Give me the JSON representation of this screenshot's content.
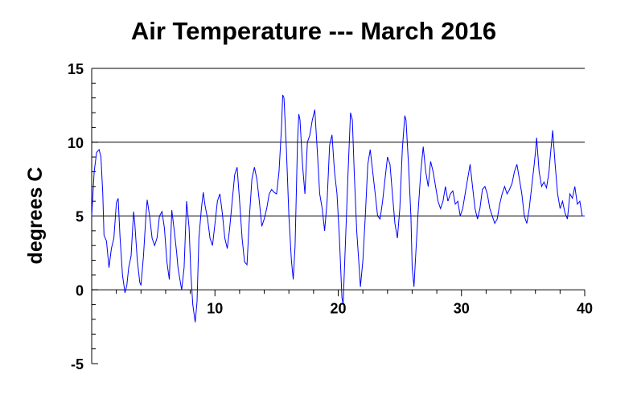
{
  "chart_data": {
    "type": "line",
    "title": "Air Temperature --- March 2016",
    "xlabel": "",
    "ylabel": "degrees C",
    "xlim": [
      0,
      40
    ],
    "ylim": [
      -5,
      15
    ],
    "x_ticks": [
      10,
      20,
      30,
      40
    ],
    "y_ticks": [
      -5,
      0,
      5,
      10,
      15
    ],
    "grid": "horizontal lines at 5, 10, 15",
    "line_color": "#0000ff",
    "series": [
      {
        "points": [
          [
            0.0,
            5.0
          ],
          [
            0.2,
            8.0
          ],
          [
            0.4,
            9.3
          ],
          [
            0.6,
            9.5
          ],
          [
            0.75,
            9.0
          ],
          [
            0.9,
            6.5
          ],
          [
            1.0,
            3.7
          ],
          [
            1.2,
            3.3
          ],
          [
            1.4,
            1.5
          ],
          [
            1.6,
            2.8
          ],
          [
            1.8,
            3.5
          ],
          [
            2.0,
            5.9
          ],
          [
            2.15,
            6.2
          ],
          [
            2.3,
            3.6
          ],
          [
            2.5,
            1.0
          ],
          [
            2.7,
            -0.2
          ],
          [
            2.85,
            0.3
          ],
          [
            3.0,
            1.5
          ],
          [
            3.2,
            2.3
          ],
          [
            3.4,
            5.3
          ],
          [
            3.5,
            4.5
          ],
          [
            3.7,
            2.0
          ],
          [
            3.9,
            0.5
          ],
          [
            4.0,
            0.3
          ],
          [
            4.2,
            2.3
          ],
          [
            4.4,
            5.0
          ],
          [
            4.5,
            6.1
          ],
          [
            4.7,
            5.0
          ],
          [
            4.9,
            3.5
          ],
          [
            5.1,
            3.0
          ],
          [
            5.3,
            3.5
          ],
          [
            5.5,
            5.0
          ],
          [
            5.7,
            5.3
          ],
          [
            5.9,
            4.2
          ],
          [
            6.1,
            1.9
          ],
          [
            6.3,
            0.7
          ],
          [
            6.5,
            5.4
          ],
          [
            6.7,
            4.0
          ],
          [
            6.9,
            2.5
          ],
          [
            7.0,
            1.5
          ],
          [
            7.2,
            0.5
          ],
          [
            7.3,
            0.0
          ],
          [
            7.5,
            1.5
          ],
          [
            7.7,
            6.0
          ],
          [
            7.9,
            4.2
          ],
          [
            8.05,
            1.0
          ],
          [
            8.2,
            -1.0
          ],
          [
            8.4,
            -2.2
          ],
          [
            8.55,
            -0.8
          ],
          [
            8.7,
            3.5
          ],
          [
            8.9,
            5.5
          ],
          [
            9.05,
            6.6
          ],
          [
            9.2,
            5.7
          ],
          [
            9.4,
            4.8
          ],
          [
            9.6,
            3.5
          ],
          [
            9.8,
            3.0
          ],
          [
            10.0,
            4.5
          ],
          [
            10.2,
            6.0
          ],
          [
            10.4,
            6.5
          ],
          [
            10.6,
            5.2
          ],
          [
            10.8,
            3.5
          ],
          [
            11.0,
            2.8
          ],
          [
            11.2,
            4.2
          ],
          [
            11.4,
            6.0
          ],
          [
            11.6,
            7.8
          ],
          [
            11.8,
            8.3
          ],
          [
            12.0,
            6.0
          ],
          [
            12.2,
            3.5
          ],
          [
            12.4,
            1.9
          ],
          [
            12.6,
            1.7
          ],
          [
            12.8,
            5.0
          ],
          [
            13.0,
            7.5
          ],
          [
            13.2,
            8.3
          ],
          [
            13.4,
            7.5
          ],
          [
            13.6,
            6.0
          ],
          [
            13.8,
            4.3
          ],
          [
            14.0,
            4.8
          ],
          [
            14.2,
            5.5
          ],
          [
            14.4,
            6.5
          ],
          [
            14.6,
            6.8
          ],
          [
            14.8,
            6.6
          ],
          [
            15.0,
            6.5
          ],
          [
            15.2,
            8.0
          ],
          [
            15.4,
            11.0
          ],
          [
            15.5,
            13.2
          ],
          [
            15.6,
            13.0
          ],
          [
            15.8,
            9.5
          ],
          [
            16.0,
            5.0
          ],
          [
            16.2,
            2.0
          ],
          [
            16.35,
            0.7
          ],
          [
            16.5,
            3.0
          ],
          [
            16.7,
            10.0
          ],
          [
            16.8,
            11.9
          ],
          [
            16.9,
            11.5
          ],
          [
            17.1,
            8.5
          ],
          [
            17.3,
            6.5
          ],
          [
            17.5,
            10.0
          ],
          [
            17.7,
            10.5
          ],
          [
            17.9,
            11.5
          ],
          [
            18.1,
            12.2
          ],
          [
            18.3,
            9.5
          ],
          [
            18.5,
            6.5
          ],
          [
            18.7,
            5.5
          ],
          [
            18.9,
            4.0
          ],
          [
            19.1,
            6.0
          ],
          [
            19.3,
            9.8
          ],
          [
            19.5,
            10.5
          ],
          [
            19.7,
            8.0
          ],
          [
            19.9,
            6.5
          ],
          [
            20.1,
            3.5
          ],
          [
            20.3,
            -0.5
          ],
          [
            20.4,
            -1.0
          ],
          [
            20.6,
            3.5
          ],
          [
            20.8,
            8.0
          ],
          [
            21.0,
            12.0
          ],
          [
            21.15,
            11.5
          ],
          [
            21.3,
            8.0
          ],
          [
            21.5,
            4.0
          ],
          [
            21.7,
            1.5
          ],
          [
            21.8,
            0.2
          ],
          [
            22.0,
            2.0
          ],
          [
            22.2,
            5.0
          ],
          [
            22.4,
            8.5
          ],
          [
            22.6,
            9.5
          ],
          [
            22.8,
            8.0
          ],
          [
            23.0,
            6.5
          ],
          [
            23.2,
            5.0
          ],
          [
            23.4,
            4.8
          ],
          [
            23.6,
            6.0
          ],
          [
            23.8,
            7.5
          ],
          [
            24.0,
            9.0
          ],
          [
            24.2,
            8.5
          ],
          [
            24.4,
            6.5
          ],
          [
            24.6,
            4.5
          ],
          [
            24.8,
            3.5
          ],
          [
            25.0,
            5.5
          ],
          [
            25.2,
            9.5
          ],
          [
            25.4,
            11.8
          ],
          [
            25.5,
            11.5
          ],
          [
            25.7,
            8.5
          ],
          [
            25.9,
            5.0
          ],
          [
            26.0,
            1.5
          ],
          [
            26.15,
            0.2
          ],
          [
            26.3,
            2.5
          ],
          [
            26.5,
            5.5
          ],
          [
            26.7,
            8.0
          ],
          [
            26.9,
            9.7
          ],
          [
            27.1,
            8.0
          ],
          [
            27.3,
            7.0
          ],
          [
            27.5,
            8.7
          ],
          [
            27.7,
            8.0
          ],
          [
            27.9,
            7.0
          ],
          [
            28.1,
            6.0
          ],
          [
            28.3,
            5.5
          ],
          [
            28.5,
            6.0
          ],
          [
            28.7,
            7.0
          ],
          [
            28.9,
            6.0
          ],
          [
            29.1,
            6.5
          ],
          [
            29.3,
            6.7
          ],
          [
            29.5,
            5.8
          ],
          [
            29.7,
            6.0
          ],
          [
            29.9,
            5.0
          ],
          [
            30.1,
            5.5
          ],
          [
            30.3,
            6.5
          ],
          [
            30.5,
            7.5
          ],
          [
            30.7,
            8.5
          ],
          [
            30.9,
            7.0
          ],
          [
            31.1,
            5.5
          ],
          [
            31.3,
            4.8
          ],
          [
            31.5,
            5.5
          ],
          [
            31.7,
            6.8
          ],
          [
            31.9,
            7.0
          ],
          [
            32.1,
            6.5
          ],
          [
            32.3,
            5.5
          ],
          [
            32.5,
            5.0
          ],
          [
            32.7,
            4.5
          ],
          [
            32.9,
            4.8
          ],
          [
            33.1,
            5.8
          ],
          [
            33.3,
            6.5
          ],
          [
            33.5,
            7.0
          ],
          [
            33.7,
            6.5
          ],
          [
            33.9,
            6.8
          ],
          [
            34.1,
            7.2
          ],
          [
            34.3,
            8.0
          ],
          [
            34.5,
            8.5
          ],
          [
            34.7,
            7.5
          ],
          [
            34.9,
            6.5
          ],
          [
            35.1,
            5.0
          ],
          [
            35.3,
            4.5
          ],
          [
            35.5,
            5.5
          ],
          [
            35.7,
            7.0
          ],
          [
            35.9,
            8.5
          ],
          [
            36.0,
            9.3
          ],
          [
            36.1,
            10.3
          ],
          [
            36.3,
            8.0
          ],
          [
            36.5,
            7.0
          ],
          [
            36.7,
            7.3
          ],
          [
            36.9,
            6.9
          ],
          [
            37.1,
            8.0
          ],
          [
            37.2,
            9.0
          ],
          [
            37.4,
            10.8
          ],
          [
            37.6,
            8.5
          ],
          [
            37.8,
            6.5
          ],
          [
            38.0,
            5.5
          ],
          [
            38.2,
            6.0
          ],
          [
            38.4,
            5.2
          ],
          [
            38.6,
            4.8
          ],
          [
            38.8,
            6.5
          ],
          [
            39.0,
            6.2
          ],
          [
            39.2,
            7.0
          ],
          [
            39.4,
            5.8
          ],
          [
            39.6,
            6.0
          ],
          [
            39.8,
            5.0
          ],
          [
            40.0,
            5.0
          ]
        ]
      }
    ]
  }
}
